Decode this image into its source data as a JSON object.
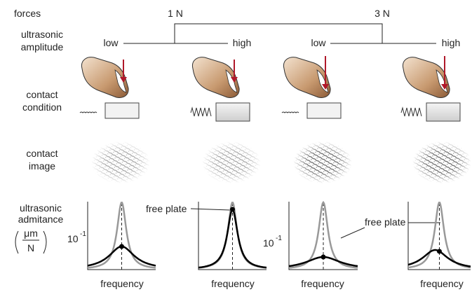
{
  "forces": {
    "label": "forces",
    "low": "1 N",
    "high": "3 N"
  },
  "amplitude": {
    "label": [
      "ultrasonic",
      "amplitude"
    ],
    "levels": [
      "low",
      "high",
      "low",
      "high"
    ]
  },
  "contact_condition": {
    "label": [
      "contact",
      "condition"
    ]
  },
  "contact_image": {
    "label": [
      "contact",
      "image"
    ]
  },
  "admittance": {
    "label": [
      "ultrasonic",
      "admitance"
    ],
    "unit_numerator": "μm",
    "unit_denominator": "N",
    "scale_labels": [
      {
        "base": "10",
        "exponent": "-1"
      },
      {
        "base": "10",
        "exponent": "-1"
      }
    ],
    "annotations": [
      "free plate",
      "free plate"
    ],
    "x_labels": [
      "frequency",
      "frequency",
      "frequency",
      "frequency"
    ]
  }
}
